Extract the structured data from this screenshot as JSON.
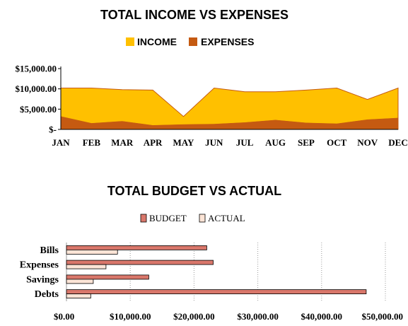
{
  "chart_data": [
    {
      "type": "area",
      "title": "TOTAL INCOME VS EXPENSES",
      "legend_position": "top",
      "categories": [
        "JAN",
        "FEB",
        "MAR",
        "APR",
        "MAY",
        "JUN",
        "JUL",
        "AUG",
        "SEP",
        "OCT",
        "NOV",
        "DEC"
      ],
      "ylim": [
        0,
        15000
      ],
      "yticks": [
        "$-",
        "$5,000.00",
        "$10,000.00",
        "$15,000.00"
      ],
      "ytick_values": [
        0,
        5000,
        10000,
        15000
      ],
      "grid": false,
      "series": [
        {
          "name": "INCOME",
          "color": "#FFC000",
          "values": [
            10200,
            10200,
            9800,
            9700,
            3200,
            10200,
            9300,
            9300,
            9700,
            10200,
            7400,
            10200
          ]
        },
        {
          "name": "EXPENSES",
          "color": "#C55A11",
          "values": [
            3200,
            1500,
            2000,
            1000,
            1200,
            1300,
            1700,
            2300,
            1600,
            1400,
            2400,
            2800
          ]
        }
      ]
    },
    {
      "type": "bar",
      "orientation": "horizontal",
      "title": "TOTAL BUDGET VS ACTUAL",
      "legend_position": "top",
      "categories": [
        "Bills",
        "Expenses",
        "Savings",
        "Debts"
      ],
      "xlim": [
        0,
        50000
      ],
      "xticks": [
        "$0.00",
        "$10,000.00",
        "$20,000.00",
        "$30,000.00",
        "$40,000.00",
        "$50,000.00"
      ],
      "xtick_values": [
        0,
        10000,
        20000,
        30000,
        40000,
        50000
      ],
      "grid": true,
      "series": [
        {
          "name": "BUDGET",
          "color": "#D9776B",
          "values": [
            22000,
            23000,
            12900,
            47000
          ]
        },
        {
          "name": "ACTUAL",
          "color": "#FCE4D6",
          "values": [
            8000,
            6200,
            4200,
            3800
          ]
        }
      ]
    }
  ]
}
